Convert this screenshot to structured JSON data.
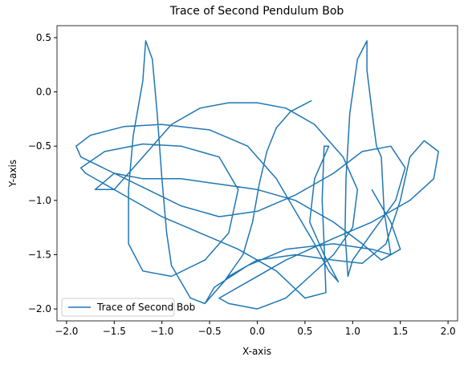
{
  "chart_data": {
    "type": "line",
    "title": "Trace of Second Pendulum Bob",
    "x_label": "X-axis",
    "y_label": "Y-axis",
    "legend": "lower left",
    "xlim": [
      -2.1,
      2.1
    ],
    "ylim": [
      -2.11,
      0.61
    ],
    "xticks": [
      {
        "value": -2.0,
        "label": "−2.0"
      },
      {
        "value": -1.5,
        "label": "−1.5"
      },
      {
        "value": -1.0,
        "label": "−1.0"
      },
      {
        "value": -0.5,
        "label": "−0.5"
      },
      {
        "value": 0.0,
        "label": "0.0"
      },
      {
        "value": 0.5,
        "label": "0.5"
      },
      {
        "value": 1.0,
        "label": "1.0"
      },
      {
        "value": 1.5,
        "label": "1.5"
      },
      {
        "value": 2.0,
        "label": "2.0"
      }
    ],
    "yticks": [
      {
        "value": -2.0,
        "label": "−2.0"
      },
      {
        "value": -1.5,
        "label": "−1.5"
      },
      {
        "value": -1.0,
        "label": "−1.0"
      },
      {
        "value": -0.5,
        "label": "−0.5"
      },
      {
        "value": 0.0,
        "label": "0.0"
      },
      {
        "value": 0.5,
        "label": "0.5"
      }
    ],
    "series": [
      {
        "name": "Trace of Second Bob",
        "color": "#1f77b4",
        "x": [
          0.57,
          0.35,
          0.2,
          0.1,
          0.02,
          -0.05,
          -0.15,
          -0.35,
          -0.55,
          -0.45,
          -0.1,
          0.3,
          0.8,
          1.2,
          1.4,
          1.33,
          1.3,
          1.25,
          1.22,
          1.15,
          1.15,
          1.05,
          0.97,
          0.93,
          0.92,
          0.95,
          1.0,
          1.2,
          1.45,
          1.55,
          1.4,
          1.1,
          0.8,
          0.4,
          0.0,
          -0.4,
          -0.8,
          -1.15,
          -1.5,
          -1.85,
          -1.9,
          -1.75,
          -1.4,
          -1.0,
          -0.5,
          -0.1,
          0.2,
          0.4,
          0.6,
          0.75,
          0.85,
          0.7,
          0.55,
          0.6,
          0.75,
          0.7,
          0.68,
          0.7,
          0.72,
          0.5,
          0.2,
          -0.2,
          -0.6,
          -1.0,
          -1.4,
          -1.8,
          -1.85,
          -1.6,
          -1.2,
          -0.8,
          -0.4,
          -0.2,
          -0.3,
          -0.55,
          -0.9,
          -1.2,
          -1.35,
          -1.35,
          -1.3,
          -1.2,
          -1.17,
          -1.1,
          -1.05,
          -1.0,
          -0.95,
          -0.9,
          -0.7,
          -0.55,
          -0.3,
          0.0,
          0.4,
          0.8,
          1.1,
          1.35,
          1.5,
          1.6,
          1.75,
          1.9,
          1.85,
          1.6,
          1.2,
          0.8,
          0.3,
          -0.1,
          -0.4,
          -0.3,
          0.0,
          0.3,
          0.55,
          0.8,
          1.0,
          1.05,
          0.9,
          0.6,
          0.3,
          0.0,
          -0.3,
          -0.6,
          -0.9,
          -1.2,
          -1.5,
          -1.7,
          -1.5,
          -1.2,
          -0.8,
          -0.4,
          0.0,
          0.4,
          0.8,
          1.1,
          1.3,
          1.5,
          1.4,
          1.2
        ],
        "values": [
          -0.08,
          -0.18,
          -0.33,
          -0.55,
          -0.85,
          -1.2,
          -1.5,
          -1.75,
          -1.95,
          -1.8,
          -1.6,
          -1.45,
          -1.4,
          -1.45,
          -1.5,
          -1.1,
          -0.6,
          -0.5,
          -0.3,
          0.2,
          0.47,
          0.3,
          -0.2,
          -0.8,
          -1.3,
          -1.7,
          -1.55,
          -1.3,
          -1.0,
          -0.7,
          -0.5,
          -0.55,
          -0.75,
          -0.95,
          -1.1,
          -1.15,
          -1.05,
          -0.9,
          -0.75,
          -0.6,
          -0.5,
          -0.4,
          -0.32,
          -0.3,
          -0.35,
          -0.5,
          -0.8,
          -1.1,
          -1.4,
          -1.65,
          -1.75,
          -1.5,
          -1.2,
          -0.8,
          -0.5,
          -0.5,
          -1.0,
          -1.4,
          -1.85,
          -1.9,
          -1.65,
          -1.45,
          -1.3,
          -1.15,
          -0.95,
          -0.75,
          -0.7,
          -0.55,
          -0.48,
          -0.5,
          -0.6,
          -0.9,
          -1.3,
          -1.55,
          -1.7,
          -1.65,
          -1.4,
          -0.9,
          -0.4,
          0.1,
          0.47,
          0.3,
          -0.2,
          -0.8,
          -1.3,
          -1.6,
          -1.9,
          -1.95,
          -1.7,
          -1.55,
          -1.5,
          -1.55,
          -1.58,
          -1.4,
          -1.0,
          -0.6,
          -0.45,
          -0.55,
          -0.8,
          -1.0,
          -1.2,
          -1.35,
          -1.55,
          -1.75,
          -1.9,
          -1.95,
          -2.0,
          -1.9,
          -1.7,
          -1.5,
          -1.25,
          -0.9,
          -0.6,
          -0.3,
          -0.15,
          -0.1,
          -0.1,
          -0.15,
          -0.3,
          -0.6,
          -0.9,
          -0.9,
          -0.75,
          -0.8,
          -0.8,
          -0.85,
          -0.9,
          -1.0,
          -1.2,
          -1.4,
          -1.55,
          -1.45,
          -1.2,
          -0.9
        ]
      }
    ]
  }
}
